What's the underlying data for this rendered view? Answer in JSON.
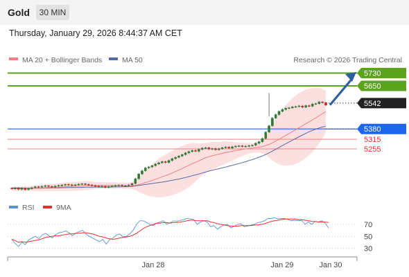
{
  "header": {
    "symbol": "Gold",
    "timeframe": "30 MIN",
    "datetime": "Thursday, January 29, 2026 8:44:37 AM CET"
  },
  "legend": {
    "ma20": "MA 20 + Bollinger Bands",
    "ma50": "MA 50",
    "credit": "Research © 2026 Trading Central"
  },
  "rsi_legend": {
    "rsi": "RSI",
    "ma9": "9MA"
  },
  "colors": {
    "green": "#5aa31a",
    "blue": "#1e66ee",
    "red": "#f08080",
    "dark": "#222222",
    "ma20": "#f08080",
    "ma50": "#5566aa",
    "bands": "#fbd3d3",
    "arrow": "#2f5f9f"
  },
  "chart_data": [
    {
      "type": "candlestick",
      "title": "Gold 30 MIN",
      "x_tick_labels": [
        "Jan 28",
        "Jan 29",
        "Jan 30"
      ],
      "ylim": [
        5000,
        5800
      ],
      "levels": [
        {
          "value": 5730,
          "label": "5730",
          "kind": "resistance",
          "style": "green-box"
        },
        {
          "value": 5650,
          "label": "5650",
          "kind": "resistance",
          "style": "green-box"
        },
        {
          "value": 5542,
          "label": "5542",
          "kind": "last-price",
          "style": "dark-box"
        },
        {
          "value": 5380,
          "label": "5380",
          "kind": "pivot",
          "style": "blue-box"
        },
        {
          "value": 5315,
          "label": "5315",
          "kind": "support",
          "style": "red-text"
        },
        {
          "value": 5255,
          "label": "5255",
          "kind": "support",
          "style": "red-text"
        }
      ],
      "close": [
        5005,
        5010,
        5002,
        5008,
        5000,
        5006,
        5012,
        5018,
        5015,
        5020,
        5024,
        5020,
        5016,
        5022,
        5026,
        5028,
        5032,
        5030,
        5026,
        5030,
        5034,
        5036,
        5032,
        5029,
        5025,
        5022,
        5018,
        5021,
        5014,
        5019,
        5022,
        5026,
        5028,
        5024,
        5025,
        5029,
        5038,
        5068,
        5098,
        5118,
        5136,
        5142,
        5150,
        5160,
        5168,
        5175,
        5170,
        5182,
        5194,
        5202,
        5210,
        5219,
        5230,
        5238,
        5245,
        5240,
        5252,
        5260,
        5262,
        5254,
        5257,
        5250,
        5256,
        5262,
        5266,
        5260,
        5268,
        5272,
        5274,
        5270,
        5272,
        5275,
        5278,
        5290,
        5300,
        5320,
        5360,
        5400,
        5448,
        5470,
        5490,
        5502,
        5510,
        5512,
        5518,
        5520,
        5524,
        5516,
        5526,
        5522,
        5536,
        5538,
        5549,
        5545,
        5530
      ],
      "ma20": [
        5005,
        5007,
        5005,
        5006,
        5006,
        5006,
        5007,
        5009,
        5009,
        5010,
        5012,
        5013,
        5013,
        5014,
        5015,
        5017,
        5018,
        5019,
        5020,
        5021,
        5022,
        5023,
        5025,
        5025,
        5026,
        5026,
        5026,
        5027,
        5026,
        5026,
        5026,
        5025,
        5025,
        5025,
        5024,
        5024,
        5024,
        5027,
        5031,
        5037,
        5044,
        5050,
        5057,
        5065,
        5072,
        5080,
        5087,
        5095,
        5104,
        5113,
        5122,
        5132,
        5142,
        5152,
        5162,
        5171,
        5180,
        5190,
        5199,
        5206,
        5212,
        5217,
        5222,
        5227,
        5232,
        5236,
        5241,
        5244,
        5248,
        5252,
        5255,
        5259,
        5260,
        5264,
        5266,
        5270,
        5276,
        5283,
        5293,
        5304,
        5315,
        5327,
        5340,
        5351,
        5363,
        5375,
        5388,
        5400,
        5413,
        5424,
        5437,
        5449,
        5463,
        5476,
        5488
      ],
      "ma50": [
        5010,
        5010,
        5010,
        5010,
        5009,
        5009,
        5009,
        5009,
        5009,
        5009,
        5010,
        5010,
        5011,
        5011,
        5011,
        5012,
        5012,
        5013,
        5013,
        5013,
        5014,
        5014,
        5015,
        5015,
        5015,
        5016,
        5016,
        5016,
        5016,
        5016,
        5017,
        5017,
        5017,
        5018,
        5018,
        5019,
        5020,
        5023,
        5026,
        5029,
        5032,
        5035,
        5038,
        5041,
        5044,
        5047,
        5050,
        5054,
        5058,
        5062,
        5066,
        5071,
        5076,
        5081,
        5087,
        5092,
        5098,
        5104,
        5110,
        5116,
        5121,
        5126,
        5131,
        5136,
        5141,
        5147,
        5152,
        5158,
        5163,
        5169,
        5175,
        5182,
        5188,
        5195,
        5203,
        5211,
        5220,
        5230,
        5241,
        5252,
        5264,
        5276,
        5287,
        5298,
        5309,
        5320,
        5331,
        5342,
        5352,
        5362,
        5371,
        5379,
        5386,
        5392,
        5397
      ]
    },
    {
      "type": "line",
      "title": "RSI",
      "series_names": [
        "RSI",
        "9MA"
      ],
      "ylim": [
        20,
        90
      ],
      "y_ticks": [
        70,
        50,
        30
      ],
      "rsi": [
        45,
        38,
        33,
        40,
        36,
        44,
        47,
        50,
        46,
        52,
        55,
        51,
        47,
        53,
        56,
        57,
        59,
        56,
        51,
        55,
        58,
        60,
        54,
        50,
        47,
        44,
        41,
        45,
        37,
        44,
        47,
        52,
        54,
        49,
        50,
        54,
        60,
        70,
        76,
        76,
        73,
        70,
        68,
        72,
        74,
        76,
        70,
        73,
        76,
        75,
        77,
        78,
        80,
        79,
        78,
        70,
        74,
        76,
        74,
        66,
        68,
        62,
        66,
        69,
        70,
        64,
        67,
        70,
        71,
        66,
        67,
        69,
        70,
        73,
        74,
        76,
        80,
        80,
        81,
        79,
        80,
        80,
        78,
        76,
        77,
        76,
        77,
        70,
        74,
        70,
        75,
        74,
        76,
        72,
        64
      ],
      "ma9": [
        45,
        43,
        40,
        41,
        40,
        41,
        42,
        43,
        44,
        46,
        48,
        49,
        50,
        51,
        51,
        52,
        53,
        54,
        54,
        55,
        55,
        56,
        56,
        55,
        54,
        52,
        50,
        49,
        47,
        46,
        45,
        46,
        47,
        48,
        49,
        50,
        52,
        55,
        59,
        63,
        66,
        68,
        70,
        72,
        72,
        73,
        73,
        72,
        73,
        73,
        74,
        75,
        76,
        77,
        77,
        76,
        76,
        76,
        76,
        74,
        73,
        71,
        70,
        69,
        68,
        67,
        67,
        67,
        68,
        68,
        68,
        68,
        69,
        69,
        70,
        71,
        73,
        75,
        76,
        77,
        78,
        79,
        79,
        79,
        79,
        78,
        78,
        77,
        76,
        75,
        75,
        74,
        74,
        74,
        73
      ]
    }
  ]
}
